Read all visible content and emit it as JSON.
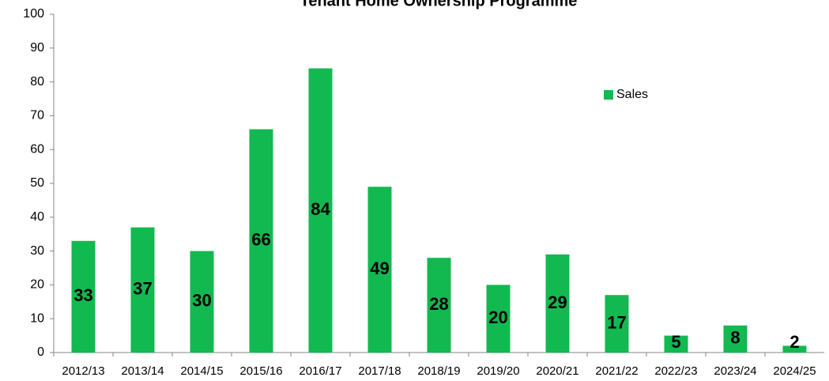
{
  "chart_data": {
    "type": "bar",
    "title": "Tenant Home Ownership Programme",
    "categories": [
      "2012/13",
      "2013/14",
      "2014/15",
      "2015/16",
      "2016/17",
      "2017/18",
      "2018/19",
      "2019/20",
      "2020/21",
      "2021/22",
      "2022/23",
      "2023/24",
      "2024/25"
    ],
    "series": [
      {
        "name": "Sales",
        "color": "#12b950",
        "values": [
          33,
          37,
          30,
          66,
          84,
          49,
          28,
          20,
          29,
          17,
          5,
          8,
          2
        ]
      }
    ],
    "ylim": [
      0,
      100
    ],
    "yticks": [
      0,
      10,
      20,
      30,
      40,
      50,
      60,
      70,
      80,
      90,
      100
    ],
    "grid": false,
    "legend": "upper right"
  }
}
